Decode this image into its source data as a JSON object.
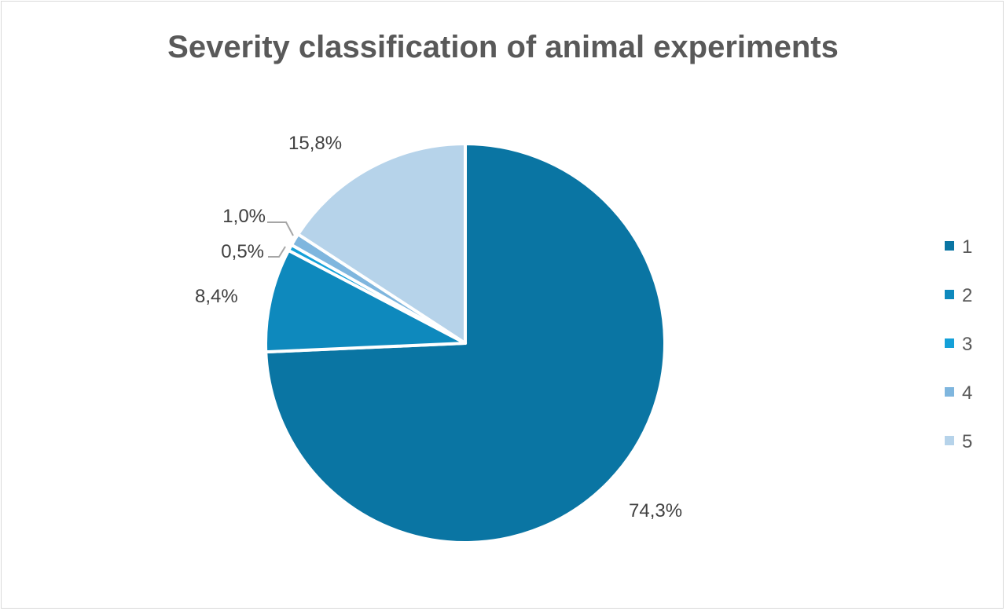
{
  "chart_data": {
    "type": "pie",
    "title": "Severity classification of animal experiments",
    "categories": [
      "1",
      "2",
      "3",
      "4",
      "5"
    ],
    "values": [
      74.3,
      8.4,
      0.5,
      1.0,
      15.8
    ],
    "data_labels": [
      "74,3%",
      "8,4%",
      "0,5%",
      "1,0%",
      "15,8%"
    ],
    "colors": [
      "#0a75a3",
      "#0e89bd",
      "#14a0d8",
      "#7fb6de",
      "#b6d3ea"
    ],
    "start_angle": "12 o'clock",
    "direction": "clockwise",
    "legend_position": "right"
  }
}
